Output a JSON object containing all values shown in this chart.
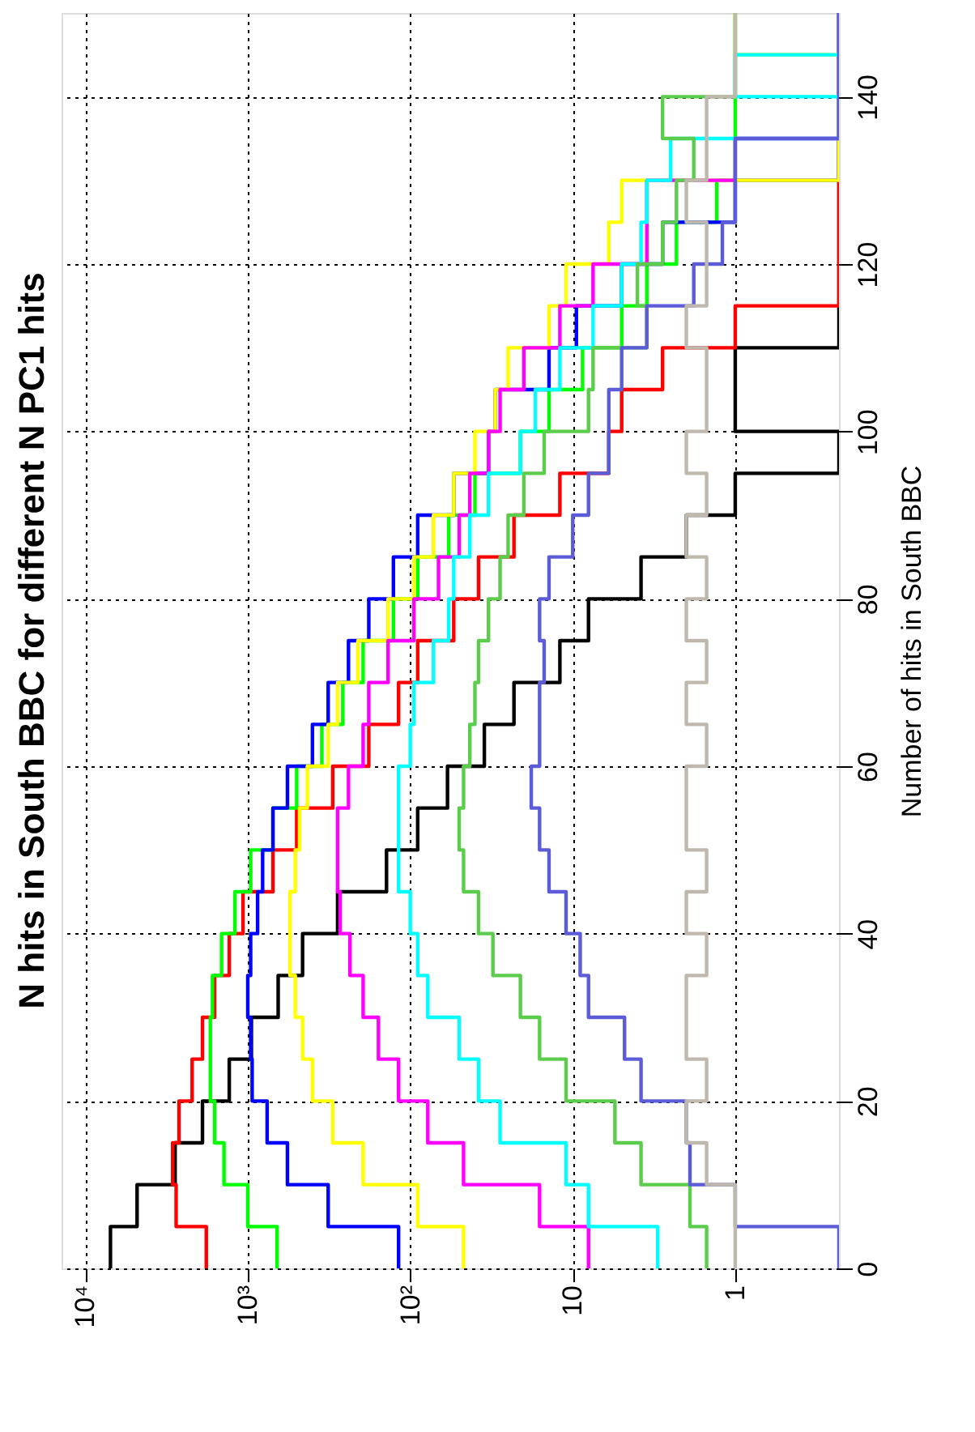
{
  "chart_data": {
    "type": "histogram",
    "orientation": "horizontal",
    "title": "N hits in South BBC for different N PC1 hits",
    "ylabel": "Number of hits in South BBC",
    "log": "x",
    "grid": true,
    "legend": false,
    "bins": [
      0,
      5,
      10,
      15,
      20,
      25,
      30,
      35,
      40,
      45,
      50,
      55,
      60,
      65,
      70,
      75,
      80,
      85,
      90,
      95,
      100,
      105,
      110,
      115,
      120,
      125,
      130,
      135,
      140,
      145,
      150
    ],
    "xlim": [
      14000,
      0.23
    ],
    "xticks": [
      {
        "value": 10000,
        "label": "10⁴"
      },
      {
        "value": 1000,
        "label": "10³"
      },
      {
        "value": 100,
        "label": "10²"
      },
      10,
      1
    ],
    "ylim": [
      0,
      150
    ],
    "yticks": [
      0,
      20,
      40,
      60,
      80,
      100,
      120,
      140
    ],
    "series": [
      {
        "color": "#000000",
        "values": [
          7000,
          4800,
          2800,
          1900,
          1300,
          950,
          650,
          460,
          280,
          140,
          90,
          59,
          35,
          23,
          12,
          8,
          3.8,
          2,
          1,
          null,
          1,
          1,
          null,
          null,
          null,
          null,
          null,
          null,
          null,
          null
        ]
      },
      {
        "color": "#ff0000",
        "values": [
          1800,
          2760,
          2900,
          2650,
          2200,
          1900,
          1600,
          1300,
          1070,
          700,
          500,
          300,
          180,
          118,
          90,
          54,
          38,
          23,
          12,
          6,
          5,
          2.8,
          1,
          null,
          null,
          null,
          null,
          null,
          null,
          null
        ]
      },
      {
        "color": "#00ff00",
        "values": [
          660,
          1000,
          1400,
          1600,
          1700,
          1700,
          1650,
          1450,
          1200,
          960,
          700,
          500,
          350,
          260,
          195,
          127,
          90,
          58,
          40,
          21,
          14,
          8.7,
          5,
          3.5,
          2.3,
          1.3,
          1,
          1,
          1,
          1
        ]
      },
      {
        "color": "#0000ff",
        "values": [
          118,
          320,
          570,
          760,
          940,
          960,
          1000,
          960,
          870,
          810,
          700,
          570,
          400,
          320,
          240,
          180,
          127,
          90,
          54,
          33,
          30,
          14,
          9.5,
          5,
          2.8,
          1,
          null,
          null,
          null,
          null
        ]
      },
      {
        "color": "#ffff00",
        "values": [
          47,
          90,
          195,
          300,
          400,
          460,
          510,
          550,
          550,
          510,
          480,
          430,
          320,
          280,
          210,
          137,
          95,
          72,
          54,
          40,
          30,
          25,
          14,
          11,
          6,
          5,
          null,
          null,
          null,
          1
        ]
      },
      {
        "color": "#ff00ff",
        "values": [
          8,
          16,
          47,
          78,
          118,
          157,
          195,
          235,
          270,
          280,
          280,
          240,
          195,
          180,
          137,
          95,
          67,
          50,
          43,
          33,
          28,
          20,
          12,
          7.5,
          3.5,
          3.5,
          1,
          null,
          null,
          null
        ]
      },
      {
        "color": "#00ffff",
        "values": [
          3,
          8,
          11,
          28,
          38,
          50,
          78,
          90,
          100,
          118,
          118,
          118,
          100,
          95,
          72,
          58,
          54,
          43,
          33,
          21,
          17,
          12,
          7.5,
          5,
          3.8,
          3.5,
          2.5,
          null,
          1,
          null
        ]
      },
      {
        "color": "#5ccc4c",
        "values": [
          1.5,
          1.9,
          3.8,
          5.5,
          11,
          16,
          21,
          31,
          38,
          47,
          50,
          47,
          43,
          40,
          38,
          33,
          28,
          25,
          20,
          15,
          8,
          7.5,
          3.5,
          4,
          2.8,
          2.3,
          1.8,
          2.8,
          1,
          1
        ]
      },
      {
        "color": "#5c5cd8",
        "values": [
          null,
          1,
          1.9,
          2,
          3.8,
          4.8,
          8,
          9,
          11,
          14,
          16,
          18,
          16,
          16,
          15,
          16,
          14,
          10,
          8,
          6,
          6,
          5,
          3.5,
          1.8,
          1.2,
          1,
          1,
          null,
          null,
          null
        ]
      },
      {
        "color": "#bfb8ad",
        "values": [
          1,
          1,
          1.5,
          2,
          1.5,
          2,
          2,
          1.5,
          2,
          1.5,
          2,
          2,
          1.5,
          2,
          1.5,
          2,
          1.5,
          2,
          1.5,
          2,
          1.5,
          1.5,
          2,
          1.5,
          1.5,
          2,
          1.5,
          1.5,
          1,
          1
        ]
      }
    ]
  }
}
